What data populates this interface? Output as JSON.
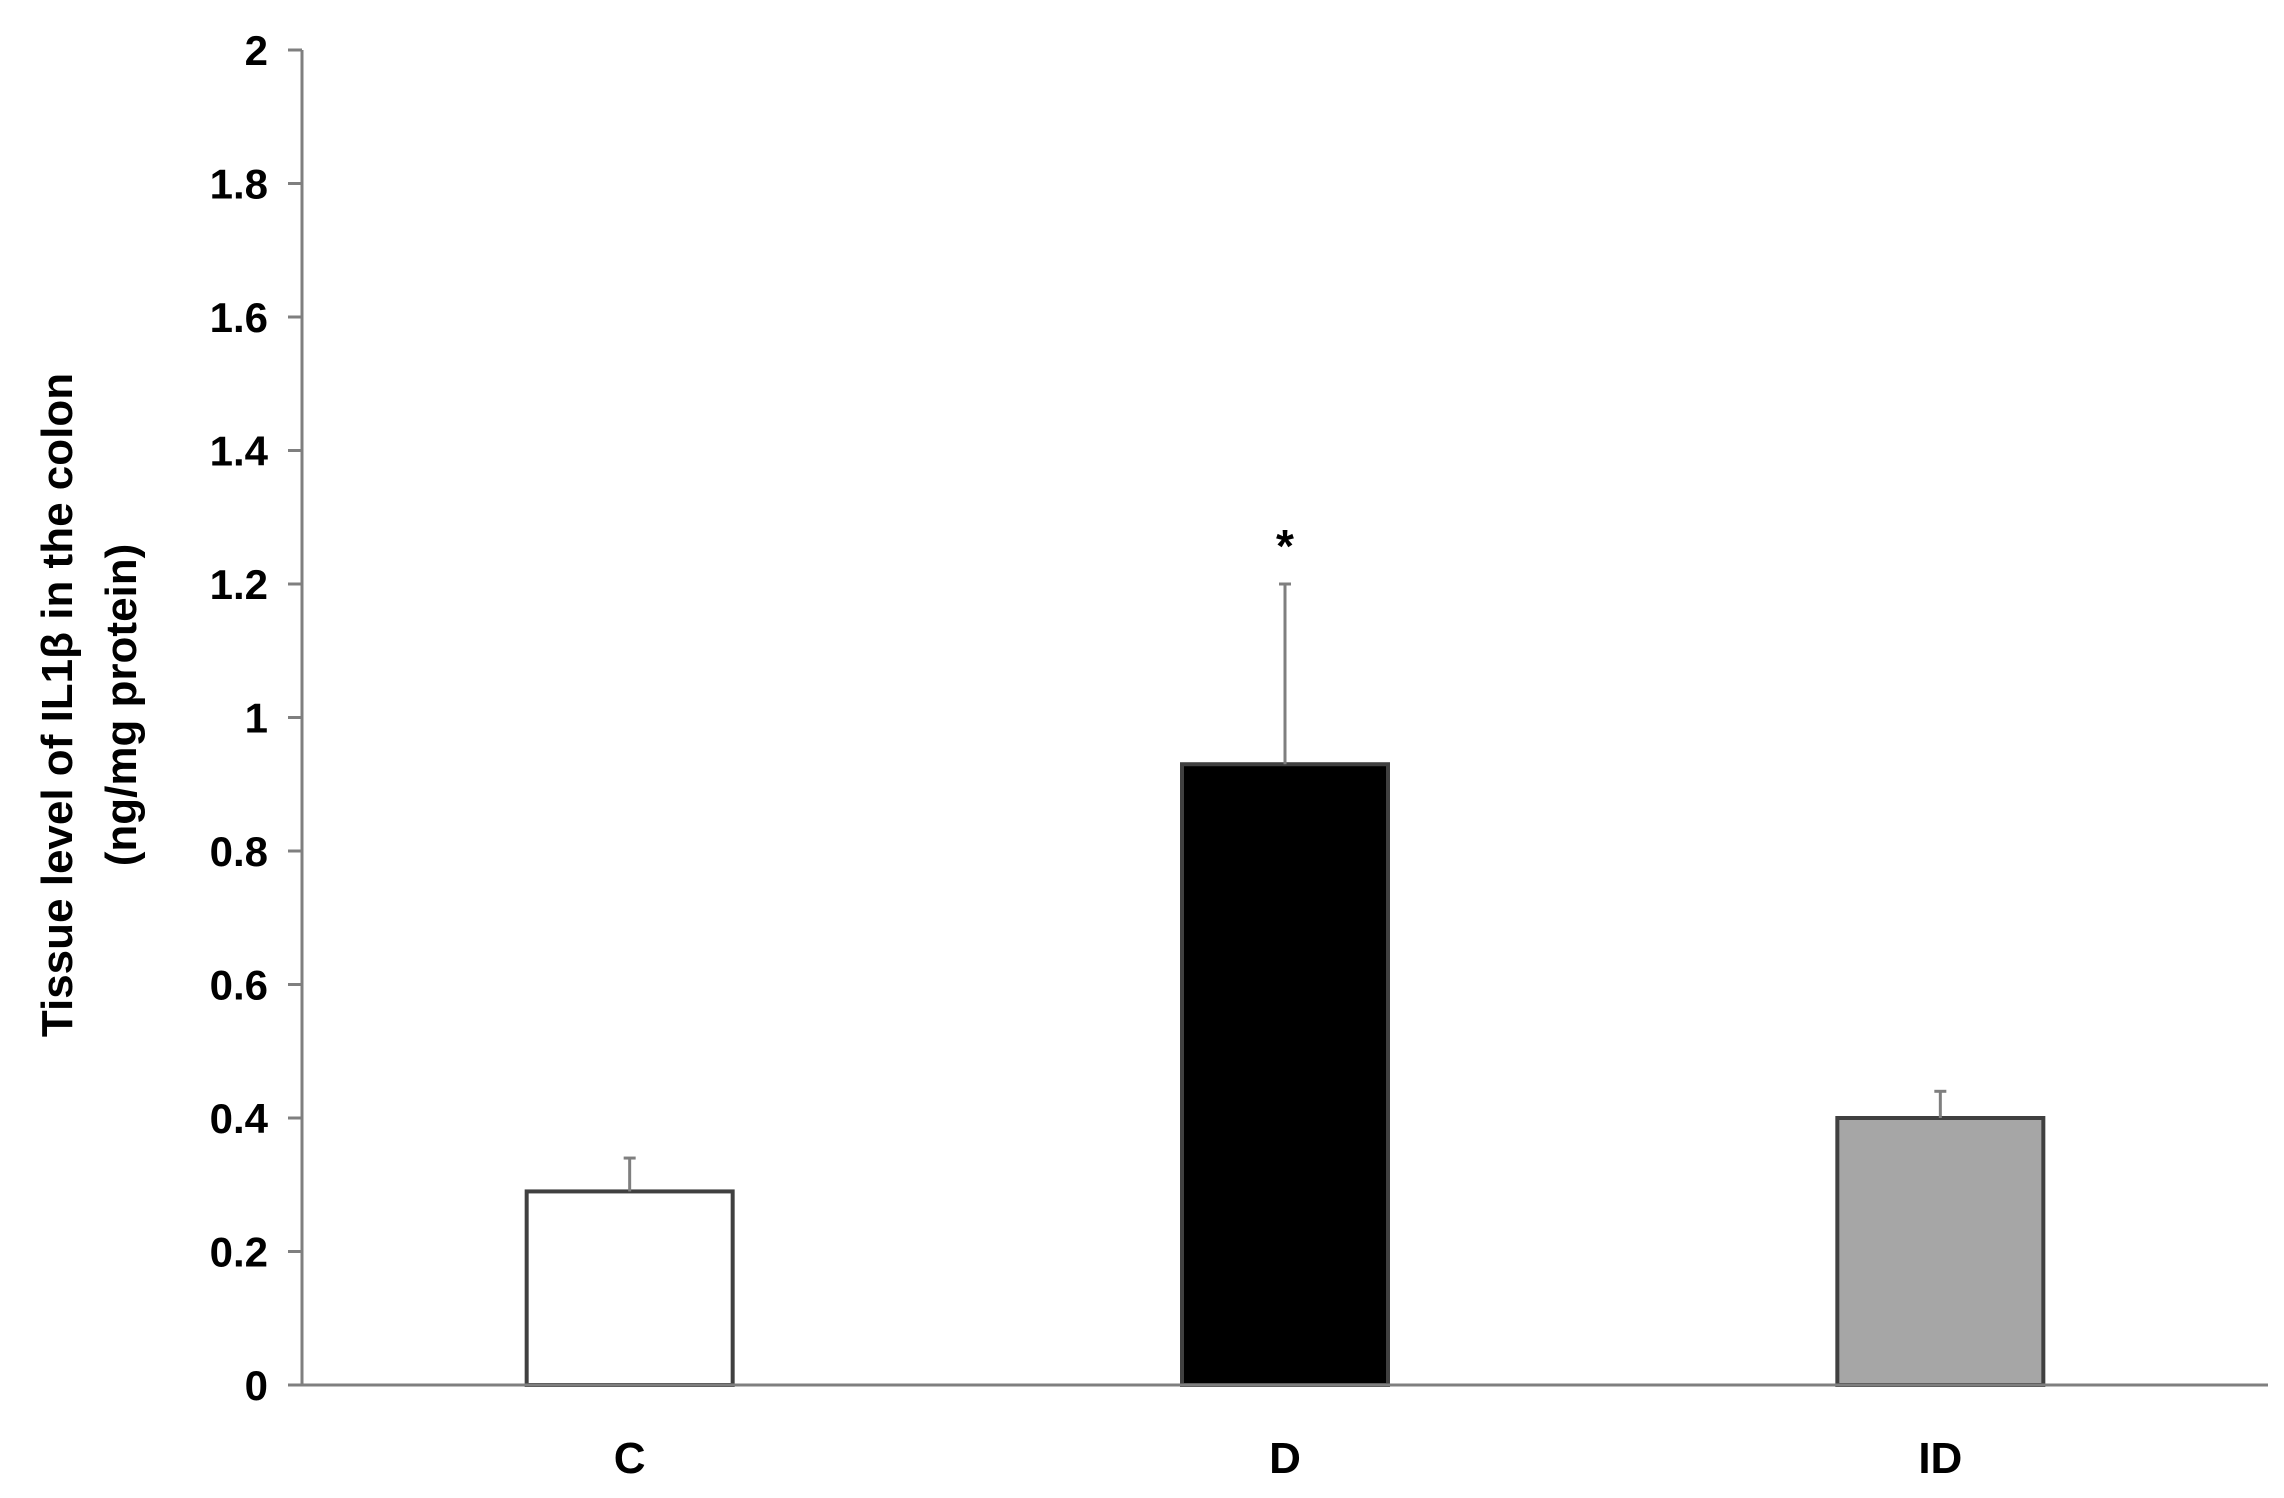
{
  "chart_data": {
    "type": "bar",
    "title": "",
    "xlabel": "",
    "ylabel_lines": [
      "Tissue level of IL1β in the colon",
      "(ng/mg protein)"
    ],
    "categories": [
      "C",
      "D",
      "ID"
    ],
    "series": [
      {
        "values": [
          0.29,
          0.93,
          0.4
        ],
        "errors": [
          0.05,
          0.27,
          0.04
        ],
        "colors": [
          "#ffffff",
          "#000000",
          "#a6a6a6"
        ]
      }
    ],
    "annotations": [
      {
        "category": "D",
        "text": "*"
      }
    ],
    "ylim": [
      0,
      2
    ],
    "yticks": [
      "0",
      "0.2",
      "0.4",
      "0.6",
      "0.8",
      "1",
      "1.2",
      "1.4",
      "1.6",
      "1.8",
      "2"
    ],
    "grid": false,
    "legend": "none"
  }
}
